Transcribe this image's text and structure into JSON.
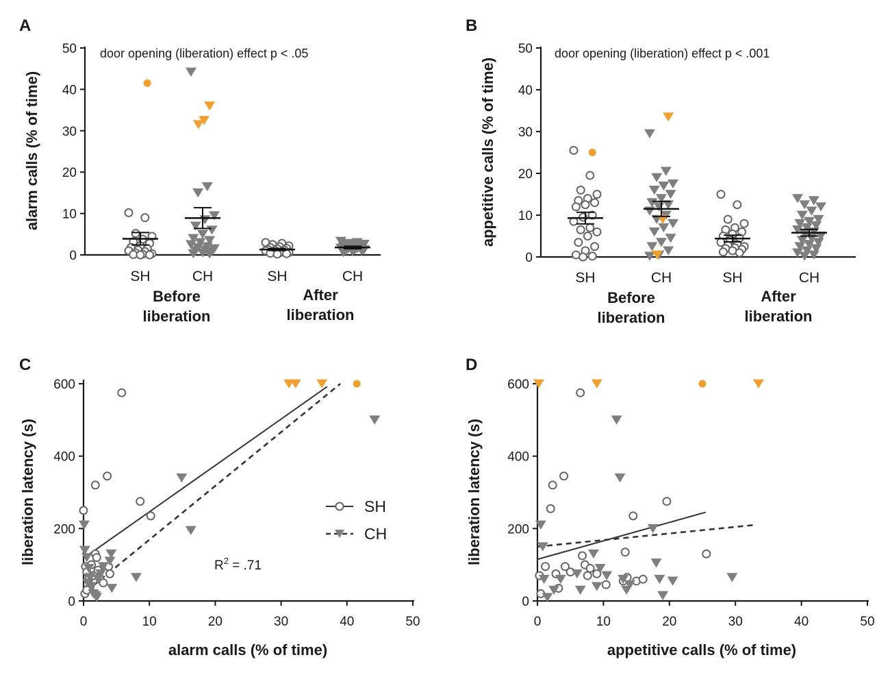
{
  "colors": {
    "open": "#8c8c8c",
    "tri": "#7f7f7f",
    "orange": "#f0a030",
    "line": "#333333"
  },
  "chart_data": [
    {
      "panel": "A",
      "type": "scatter",
      "subtype": "dot-strip",
      "ylabel": "alarm calls (% of time)",
      "ylim": [
        0,
        50
      ],
      "yticks": [
        "0",
        "10",
        "20",
        "30",
        "40",
        "50"
      ],
      "annotation": "door opening (liberation) effect p < .05",
      "conditions": [
        "Before liberation",
        "After liberation"
      ],
      "groups": [
        {
          "label": "SH",
          "condition": "Before liberation",
          "marker": "circle-open",
          "mean": 3.9,
          "sem": 1.5,
          "values": [
            10.2,
            9.0,
            5.2,
            4.5,
            3.8,
            3.2,
            2.8,
            2.2,
            1.8,
            1.5,
            1.2,
            1.0,
            0.8,
            0.5,
            0.3,
            0.2,
            0.1,
            0.0,
            0.0
          ],
          "highlight": [
            41.5
          ]
        },
        {
          "label": "CH",
          "condition": "Before liberation",
          "marker": "triangle",
          "mean": 8.9,
          "sem": 2.5,
          "values": [
            44.2,
            16.5,
            15.0,
            9.5,
            8.5,
            7.0,
            6.0,
            5.0,
            4.0,
            3.5,
            3.0,
            2.5,
            2.0,
            1.8,
            1.5,
            1.2,
            1.0,
            0.8,
            0.5,
            0.3,
            0.2
          ],
          "highlight": [
            36.0,
            32.5,
            31.5
          ]
        },
        {
          "label": "SH",
          "condition": "After liberation",
          "marker": "circle-open",
          "mean": 1.3,
          "sem": 0.25,
          "values": [
            3.0,
            2.8,
            2.5,
            2.2,
            2.0,
            1.8,
            1.6,
            1.5,
            1.3,
            1.2,
            1.1,
            1.0,
            0.9,
            0.8,
            0.6,
            0.5,
            0.4,
            0.3,
            0.2
          ],
          "highlight": []
        },
        {
          "label": "CH",
          "condition": "After liberation",
          "marker": "triangle",
          "mean": 1.8,
          "sem": 0.3,
          "values": [
            3.3,
            3.0,
            2.8,
            2.6,
            2.5,
            2.3,
            2.2,
            2.0,
            1.9,
            1.8,
            1.7,
            1.6,
            1.5,
            1.4,
            1.3,
            1.2,
            1.0,
            0.9,
            0.8,
            0.6
          ],
          "highlight": []
        }
      ]
    },
    {
      "panel": "B",
      "type": "scatter",
      "subtype": "dot-strip",
      "ylabel": "appetitive calls (% of time)",
      "ylim": [
        0,
        50
      ],
      "yticks": [
        "0",
        "10",
        "20",
        "30",
        "40",
        "50"
      ],
      "annotation": "door opening (liberation) effect p < .001",
      "conditions": [
        "Before liberation",
        "After liberation"
      ],
      "groups": [
        {
          "label": "SH",
          "condition": "Before liberation",
          "marker": "circle-open",
          "mean": 9.3,
          "sem": 1.4,
          "values": [
            25.5,
            19.5,
            16.0,
            15.0,
            14.0,
            13.5,
            13.0,
            12.5,
            12.0,
            10.0,
            9.5,
            8.5,
            7.0,
            6.5,
            6.0,
            5.0,
            3.5,
            2.5,
            1.5,
            0.5,
            0.2,
            0.0
          ],
          "highlight": [
            25.0
          ]
        },
        {
          "label": "CH",
          "condition": "Before liberation",
          "marker": "triangle",
          "mean": 11.5,
          "sem": 1.8,
          "values": [
            29.5,
            20.5,
            19.0,
            17.5,
            17.0,
            16.0,
            15.0,
            14.0,
            13.0,
            12.5,
            12.0,
            11.0,
            10.0,
            9.0,
            8.0,
            7.0,
            6.0,
            4.5,
            3.5,
            2.5,
            1.5,
            0.5,
            0.2
          ],
          "highlight": [
            33.5,
            9.0,
            0.5
          ]
        },
        {
          "label": "SH",
          "condition": "After liberation",
          "marker": "circle-open",
          "mean": 4.4,
          "sem": 0.8,
          "values": [
            15.0,
            12.5,
            9.0,
            8.0,
            7.0,
            6.5,
            6.0,
            5.5,
            5.0,
            4.5,
            4.0,
            3.5,
            3.0,
            2.8,
            2.5,
            2.2,
            2.0,
            1.8,
            1.5,
            1.2,
            1.0
          ],
          "highlight": []
        },
        {
          "label": "CH",
          "condition": "After liberation",
          "marker": "triangle",
          "mean": 5.8,
          "sem": 0.8,
          "values": [
            14.0,
            13.5,
            12.5,
            12.0,
            11.0,
            10.0,
            9.0,
            8.5,
            8.0,
            7.5,
            7.0,
            6.5,
            6.0,
            5.5,
            5.0,
            4.5,
            4.0,
            3.5,
            3.0,
            2.5,
            2.0,
            1.5,
            1.0,
            0.5,
            0.2
          ],
          "highlight": []
        }
      ]
    },
    {
      "panel": "C",
      "type": "scatter",
      "xlabel": "alarm calls (% of time)",
      "ylabel": "liberation latency (s)",
      "xlim": [
        0,
        50
      ],
      "ylim": [
        0,
        600
      ],
      "xticks": [
        "0",
        "10",
        "20",
        "30",
        "40",
        "50"
      ],
      "yticks": [
        "0",
        "200",
        "400",
        "600"
      ],
      "r2_label": "R",
      "r2_sup": "2",
      "r2_text": " = .71",
      "legend": [
        {
          "label": "SH",
          "marker": "circle-open",
          "line": "solid"
        },
        {
          "label": "CH",
          "marker": "triangle",
          "line": "dashed"
        }
      ],
      "series": [
        {
          "name": "SH",
          "marker": "circle-open",
          "points": [
            [
              0.0,
              250
            ],
            [
              0.3,
              95
            ],
            [
              0.5,
              80
            ],
            [
              0.8,
              60
            ],
            [
              1.0,
              40
            ],
            [
              0.2,
              20
            ],
            [
              1.5,
              70
            ],
            [
              1.8,
              130
            ],
            [
              2.0,
              120
            ],
            [
              2.5,
              60
            ],
            [
              3.0,
              50
            ],
            [
              3.8,
              95
            ],
            [
              4.0,
              75
            ],
            [
              1.8,
              320
            ],
            [
              3.6,
              345
            ],
            [
              5.8,
              575
            ],
            [
              8.6,
              275
            ],
            [
              10.2,
              235
            ],
            [
              0.5,
              30
            ],
            [
              1.2,
              100
            ],
            [
              2.2,
              85
            ]
          ],
          "highlight": [
            [
              41.5,
              600
            ]
          ]
        },
        {
          "name": "CH",
          "marker": "triangle",
          "points": [
            [
              0.1,
              210
            ],
            [
              0.2,
              140
            ],
            [
              0.5,
              120
            ],
            [
              0.8,
              90
            ],
            [
              1.0,
              65
            ],
            [
              1.2,
              40
            ],
            [
              1.5,
              20
            ],
            [
              2.0,
              10
            ],
            [
              2.2,
              60
            ],
            [
              2.6,
              75
            ],
            [
              3.0,
              95
            ],
            [
              4.0,
              110
            ],
            [
              4.2,
              130
            ],
            [
              4.3,
              35
            ],
            [
              8.0,
              65
            ],
            [
              14.9,
              340
            ],
            [
              16.3,
              195
            ],
            [
              44.2,
              500
            ],
            [
              0.6,
              50
            ],
            [
              1.8,
              15
            ]
          ],
          "highlight": [
            [
              31.2,
              600
            ],
            [
              32.2,
              600
            ],
            [
              36.2,
              600
            ]
          ]
        }
      ],
      "fits": [
        {
          "name": "SH",
          "style": "solid",
          "x": [
            0,
            37
          ],
          "y": [
            118,
            592
          ]
        },
        {
          "name": "CH",
          "style": "dashed",
          "x": [
            0.3,
            39
          ],
          "y": [
            25,
            600
          ]
        }
      ]
    },
    {
      "panel": "D",
      "type": "scatter",
      "xlabel": "appetitive calls (% of time)",
      "ylabel": "liberation latency (s)",
      "xlim": [
        0,
        50
      ],
      "ylim": [
        0,
        600
      ],
      "xticks": [
        "0",
        "10",
        "20",
        "30",
        "40",
        "50"
      ],
      "yticks": [
        "0",
        "200",
        "400",
        "600"
      ],
      "series": [
        {
          "name": "SH",
          "marker": "circle-open",
          "points": [
            [
              0.3,
              70
            ],
            [
              0.5,
              20
            ],
            [
              1.2,
              95
            ],
            [
              2.0,
              255
            ],
            [
              2.3,
              320
            ],
            [
              2.8,
              75
            ],
            [
              3.2,
              35
            ],
            [
              4.0,
              345
            ],
            [
              4.2,
              95
            ],
            [
              5.0,
              80
            ],
            [
              6.5,
              575
            ],
            [
              6.8,
              125
            ],
            [
              7.2,
              100
            ],
            [
              7.6,
              70
            ],
            [
              8.0,
              90
            ],
            [
              9.0,
              75
            ],
            [
              10.4,
              45
            ],
            [
              13.0,
              55
            ],
            [
              13.3,
              135
            ],
            [
              13.6,
              65
            ],
            [
              14.5,
              235
            ],
            [
              15.0,
              55
            ],
            [
              16.0,
              60
            ],
            [
              19.6,
              275
            ],
            [
              25.6,
              130
            ]
          ],
          "highlight": [
            [
              25.0,
              600
            ]
          ]
        },
        {
          "name": "CH",
          "marker": "triangle",
          "points": [
            [
              0.5,
              210
            ],
            [
              0.8,
              150
            ],
            [
              1.0,
              60
            ],
            [
              1.5,
              10
            ],
            [
              2.5,
              30
            ],
            [
              3.5,
              60
            ],
            [
              6.0,
              75
            ],
            [
              6.5,
              30
            ],
            [
              8.5,
              130
            ],
            [
              9.0,
              40
            ],
            [
              9.5,
              90
            ],
            [
              10.5,
              70
            ],
            [
              12.0,
              500
            ],
            [
              12.5,
              340
            ],
            [
              13.0,
              60
            ],
            [
              13.5,
              30
            ],
            [
              14.0,
              45
            ],
            [
              17.5,
              200
            ],
            [
              18.0,
              105
            ],
            [
              18.5,
              60
            ],
            [
              19.0,
              15
            ],
            [
              20.5,
              55
            ],
            [
              29.5,
              65
            ]
          ],
          "highlight": [
            [
              0.2,
              600
            ],
            [
              9.0,
              600
            ],
            [
              33.5,
              600
            ]
          ]
        }
      ],
      "fits": [
        {
          "name": "SH",
          "style": "solid",
          "x": [
            0,
            25.5
          ],
          "y": [
            115,
            245
          ]
        },
        {
          "name": "CH",
          "style": "dashed",
          "x": [
            0,
            33
          ],
          "y": [
            150,
            210
          ]
        }
      ]
    }
  ]
}
